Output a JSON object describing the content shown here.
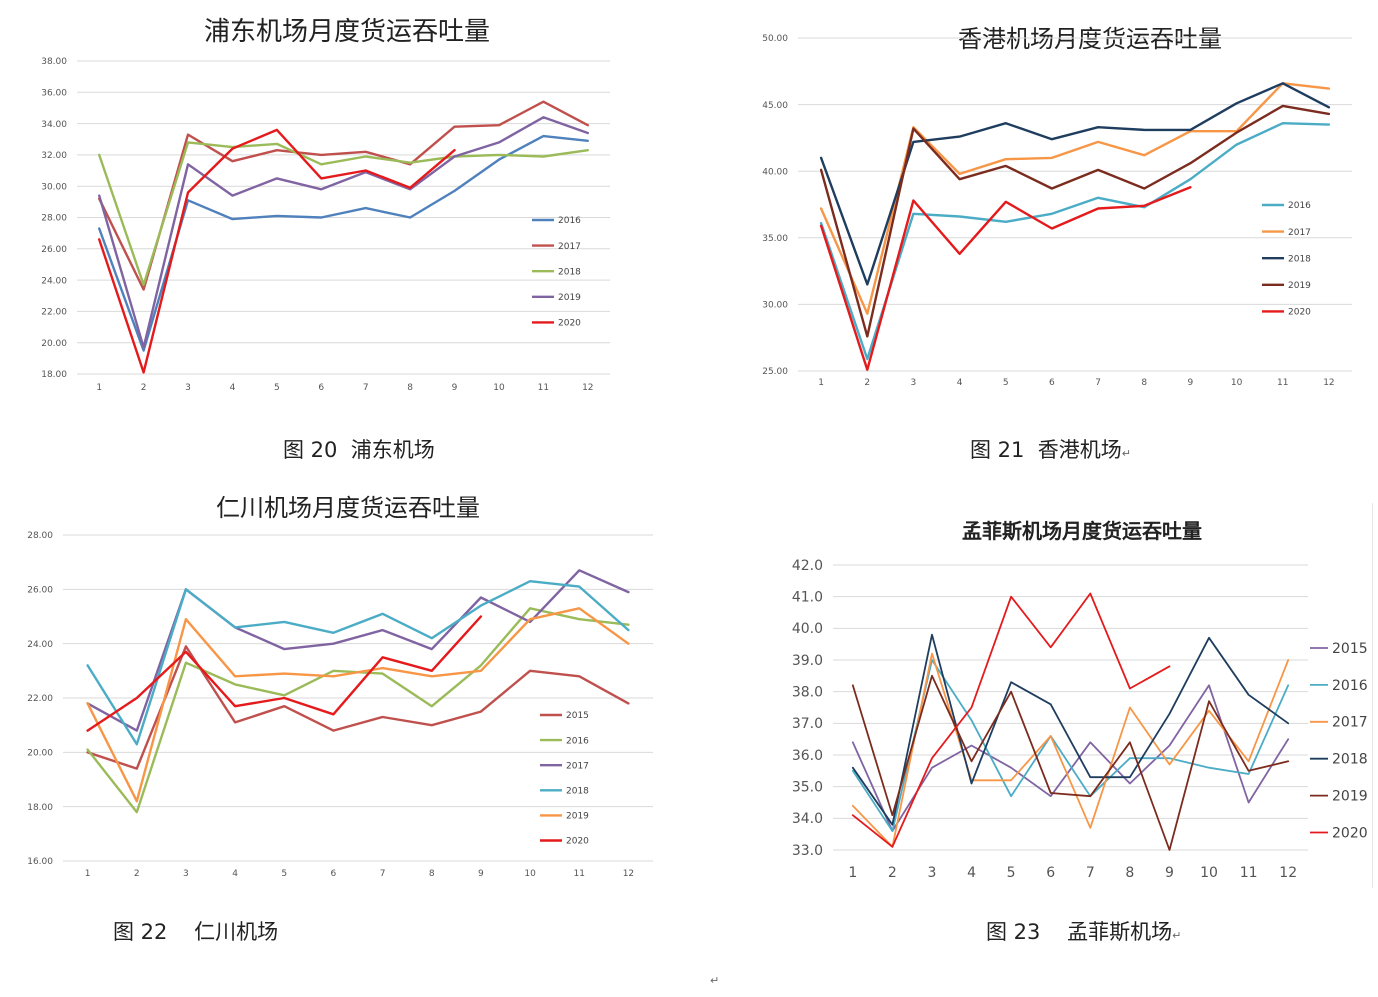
{
  "captions": {
    "c20": "图 20  浦东机场",
    "c21": "图 21  香港机场",
    "c21_mark": "↵",
    "c22": "图 22    仁川机场",
    "c23": "图 23    孟菲斯机场",
    "c23_mark": "↵"
  },
  "footer_mark": "↵",
  "colors": {
    "2015_red": "#C0504D",
    "2015_purple": "#8064A2",
    "2016_blue": "#4F81BD",
    "2017_red": "#C0504D",
    "2018_green": "#9BBB59",
    "2019_purple": "#8064A2",
    "2020_red": "#E41A1C",
    "teal": "#4BACC6",
    "orange": "#F79646",
    "navy": "#1F3D5E",
    "maroon": "#7B2C1E"
  },
  "chart_data": [
    {
      "type": "line",
      "title": "浦东机场月度货运吞吐量",
      "categories": [
        "1",
        "2",
        "3",
        "4",
        "5",
        "6",
        "7",
        "8",
        "9",
        "10",
        "11",
        "12"
      ],
      "ylim": [
        18,
        38
      ],
      "y_ticks": [
        "18.00",
        "20.00",
        "22.00",
        "24.00",
        "26.00",
        "28.00",
        "30.00",
        "32.00",
        "34.00",
        "36.00",
        "38.00"
      ],
      "grid": true,
      "legend_position": "right",
      "series": [
        {
          "name": "2016",
          "color": "#4F81BD",
          "values": [
            27.3,
            19.5,
            29.1,
            27.9,
            28.1,
            28.0,
            28.6,
            28.0,
            29.7,
            31.7,
            33.2,
            32.9
          ]
        },
        {
          "name": "2017",
          "color": "#C0504D",
          "values": [
            29.2,
            23.4,
            33.3,
            31.6,
            32.3,
            32.0,
            32.2,
            31.4,
            33.8,
            33.9,
            35.4,
            33.9
          ]
        },
        {
          "name": "2018",
          "color": "#9BBB59",
          "values": [
            32.0,
            23.7,
            32.8,
            32.5,
            32.7,
            31.4,
            31.9,
            31.5,
            31.9,
            32.0,
            31.9,
            32.3
          ]
        },
        {
          "name": "2019",
          "color": "#8064A2",
          "values": [
            29.4,
            19.7,
            31.4,
            29.4,
            30.5,
            29.8,
            30.9,
            29.8,
            31.9,
            32.8,
            34.4,
            33.4
          ]
        },
        {
          "name": "2020",
          "color": "#E41A1C",
          "values": [
            26.6,
            18.1,
            29.6,
            32.4,
            33.6,
            30.5,
            31.0,
            29.9,
            32.3,
            null,
            null,
            null
          ]
        }
      ]
    },
    {
      "type": "line",
      "title": "香港机场月度货运吞吐量",
      "categories": [
        "1",
        "2",
        "3",
        "4",
        "5",
        "6",
        "7",
        "8",
        "9",
        "10",
        "11",
        "12"
      ],
      "ylim": [
        25,
        50
      ],
      "y_ticks": [
        "25.00",
        "30.00",
        "35.00",
        "40.00",
        "45.00",
        "50.00"
      ],
      "grid": true,
      "legend_position": "right",
      "series": [
        {
          "name": "2016",
          "color": "#4BACC6",
          "values": [
            36.1,
            25.9,
            36.8,
            36.6,
            36.2,
            36.8,
            38.0,
            37.3,
            39.4,
            42.0,
            43.6,
            43.5
          ]
        },
        {
          "name": "2017",
          "color": "#F79646",
          "values": [
            37.2,
            29.3,
            43.3,
            39.8,
            40.9,
            41.0,
            42.2,
            41.2,
            43.0,
            43.0,
            46.6,
            46.2
          ]
        },
        {
          "name": "2018",
          "color": "#1F3D5E",
          "values": [
            41.0,
            31.5,
            42.2,
            42.6,
            43.6,
            42.4,
            43.3,
            43.1,
            43.1,
            45.1,
            46.6,
            44.8
          ]
        },
        {
          "name": "2019",
          "color": "#7B2C1E",
          "values": [
            40.1,
            27.6,
            43.2,
            39.4,
            40.4,
            38.7,
            40.1,
            38.7,
            40.6,
            42.9,
            44.9,
            44.3
          ]
        },
        {
          "name": "2020",
          "color": "#E41A1C",
          "values": [
            35.9,
            25.1,
            37.8,
            33.8,
            37.7,
            35.7,
            37.2,
            37.4,
            38.8,
            null,
            null,
            null
          ]
        }
      ]
    },
    {
      "type": "line",
      "title": "仁川机场月度货运吞吐量",
      "categories": [
        "1",
        "2",
        "3",
        "4",
        "5",
        "6",
        "7",
        "8",
        "9",
        "10",
        "11",
        "12"
      ],
      "ylim": [
        16,
        28
      ],
      "y_ticks": [
        "16.00",
        "18.00",
        "20.00",
        "22.00",
        "24.00",
        "26.00",
        "28.00"
      ],
      "grid": true,
      "legend_position": "right",
      "series": [
        {
          "name": "2015",
          "color": "#C0504D",
          "values": [
            20.0,
            19.4,
            23.9,
            21.1,
            21.7,
            20.8,
            21.3,
            21.0,
            21.5,
            23.0,
            22.8,
            21.8
          ]
        },
        {
          "name": "2016",
          "color": "#9BBB59",
          "values": [
            20.1,
            17.8,
            23.3,
            22.5,
            22.1,
            23.0,
            22.9,
            21.7,
            23.2,
            25.3,
            24.9,
            24.7
          ]
        },
        {
          "name": "2017",
          "color": "#8064A2",
          "values": [
            21.8,
            20.8,
            26.0,
            24.6,
            23.8,
            24.0,
            24.5,
            23.8,
            25.7,
            24.8,
            26.7,
            25.9
          ]
        },
        {
          "name": "2018",
          "color": "#4BACC6",
          "values": [
            23.2,
            20.3,
            26.0,
            24.6,
            24.8,
            24.4,
            25.1,
            24.2,
            25.4,
            26.3,
            26.1,
            24.5
          ]
        },
        {
          "name": "2019",
          "color": "#F79646",
          "values": [
            21.8,
            18.2,
            24.9,
            22.8,
            22.9,
            22.8,
            23.1,
            22.8,
            23.0,
            24.9,
            25.3,
            24.0
          ]
        },
        {
          "name": "2020",
          "color": "#E41A1C",
          "values": [
            20.8,
            22.0,
            23.7,
            21.7,
            22.0,
            21.4,
            23.5,
            23.0,
            25.0,
            null,
            null,
            null
          ]
        }
      ]
    },
    {
      "type": "line",
      "title": "孟菲斯机场月度货运吞吐量",
      "categories": [
        "1",
        "2",
        "3",
        "4",
        "5",
        "6",
        "7",
        "8",
        "9",
        "10",
        "11",
        "12"
      ],
      "ylim": [
        33,
        42
      ],
      "y_ticks": [
        "33.0",
        "34.0",
        "35.0",
        "36.0",
        "37.0",
        "38.0",
        "39.0",
        "40.0",
        "41.0",
        "42.0"
      ],
      "grid": true,
      "legend_position": "right",
      "series": [
        {
          "name": "2015",
          "color": "#8064A2",
          "values": [
            36.4,
            33.6,
            35.6,
            36.3,
            35.6,
            34.7,
            36.4,
            35.1,
            36.3,
            38.2,
            34.5,
            36.5
          ]
        },
        {
          "name": "2016",
          "color": "#4BACC6",
          "values": [
            35.5,
            33.6,
            39.0,
            37.1,
            34.7,
            36.6,
            34.7,
            35.9,
            35.9,
            35.6,
            35.4,
            38.2
          ]
        },
        {
          "name": "2017",
          "color": "#F79646",
          "values": [
            34.4,
            33.1,
            39.2,
            35.2,
            35.2,
            36.6,
            33.7,
            37.5,
            35.7,
            37.4,
            35.8,
            39.0
          ]
        },
        {
          "name": "2018",
          "color": "#1F3D5E",
          "values": [
            35.6,
            33.8,
            39.8,
            35.1,
            38.3,
            37.6,
            35.3,
            35.3,
            37.3,
            39.7,
            37.9,
            37.0
          ]
        },
        {
          "name": "2019",
          "color": "#7B2C1E",
          "values": [
            38.2,
            34.1,
            38.5,
            35.8,
            38.0,
            34.8,
            34.7,
            36.4,
            33.0,
            37.7,
            35.5,
            35.8
          ]
        },
        {
          "name": "2020",
          "color": "#E41A1C",
          "values": [
            34.1,
            33.1,
            35.9,
            37.5,
            41.0,
            39.4,
            41.1,
            38.1,
            38.8,
            null,
            null,
            null
          ]
        }
      ]
    }
  ]
}
